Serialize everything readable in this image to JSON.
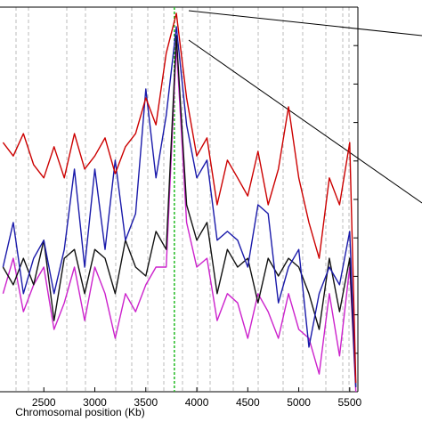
{
  "chart_data": {
    "type": "line",
    "xlabel": "Chromosomal position (Kb)",
    "x": [
      2100,
      2200,
      2300,
      2400,
      2500,
      2600,
      2700,
      2800,
      2900,
      3000,
      3100,
      3200,
      3300,
      3400,
      3500,
      3600,
      3700,
      3800,
      3900,
      4000,
      4100,
      4200,
      4300,
      4400,
      4500,
      4600,
      4700,
      4800,
      4900,
      5000,
      5100,
      5200,
      5300,
      5400,
      5500,
      5560
    ],
    "xlim": [
      2070,
      5580
    ],
    "xticks": [
      2500,
      3000,
      3500,
      4000,
      4500,
      5000,
      5500
    ],
    "ylim": [
      0,
      10
    ],
    "yticks": [
      0,
      1,
      2,
      3,
      4,
      5,
      6,
      7,
      8,
      9,
      10
    ],
    "highlight_x": 3780,
    "highlight_color": "#22bb22",
    "series": [
      {
        "color": "#cc0000",
        "values": [
          6.48,
          6.13,
          6.71,
          5.9,
          5.56,
          6.37,
          5.56,
          6.71,
          5.79,
          6.13,
          6.6,
          5.67,
          6.37,
          6.71,
          7.64,
          6.94,
          8.8,
          9.84,
          7.64,
          6.13,
          6.6,
          4.86,
          6.02,
          5.56,
          5.09,
          6.25,
          4.86,
          5.79,
          7.41,
          5.56,
          4.4,
          3.47,
          5.56,
          4.86,
          6.48,
          0.23
        ]
      },
      {
        "color": "#1a1aaa",
        "values": [
          3.24,
          4.4,
          2.55,
          3.47,
          3.94,
          2.55,
          3.7,
          5.79,
          3.24,
          5.79,
          3.7,
          6.02,
          3.94,
          4.63,
          7.87,
          5.56,
          7.18,
          9.49,
          6.94,
          5.56,
          6.02,
          3.94,
          4.17,
          3.94,
          3.24,
          4.86,
          4.63,
          2.31,
          3.24,
          3.7,
          1.16,
          2.55,
          3.24,
          2.78,
          4.17,
          0.12
        ]
      },
      {
        "color": "#111111",
        "values": [
          3.24,
          2.78,
          3.47,
          2.78,
          3.94,
          1.85,
          3.47,
          3.7,
          2.55,
          3.7,
          3.47,
          2.55,
          3.94,
          3.24,
          3.01,
          4.17,
          3.7,
          9.26,
          4.86,
          3.94,
          4.4,
          2.55,
          3.7,
          3.24,
          3.47,
          2.31,
          3.47,
          3.01,
          3.47,
          3.24,
          2.55,
          1.62,
          3.47,
          2.08,
          3.47,
          0.12
        ]
      },
      {
        "color": "#cc22cc",
        "values": [
          2.55,
          3.47,
          2.08,
          2.78,
          3.24,
          1.62,
          2.31,
          3.24,
          1.85,
          3.24,
          2.55,
          1.39,
          2.55,
          2.08,
          2.78,
          3.24,
          3.24,
          9.03,
          4.4,
          3.24,
          3.47,
          1.85,
          2.55,
          2.31,
          1.39,
          2.55,
          2.08,
          1.39,
          2.55,
          1.62,
          1.39,
          0.46,
          2.55,
          0.93,
          3.24,
          0
        ]
      }
    ]
  }
}
